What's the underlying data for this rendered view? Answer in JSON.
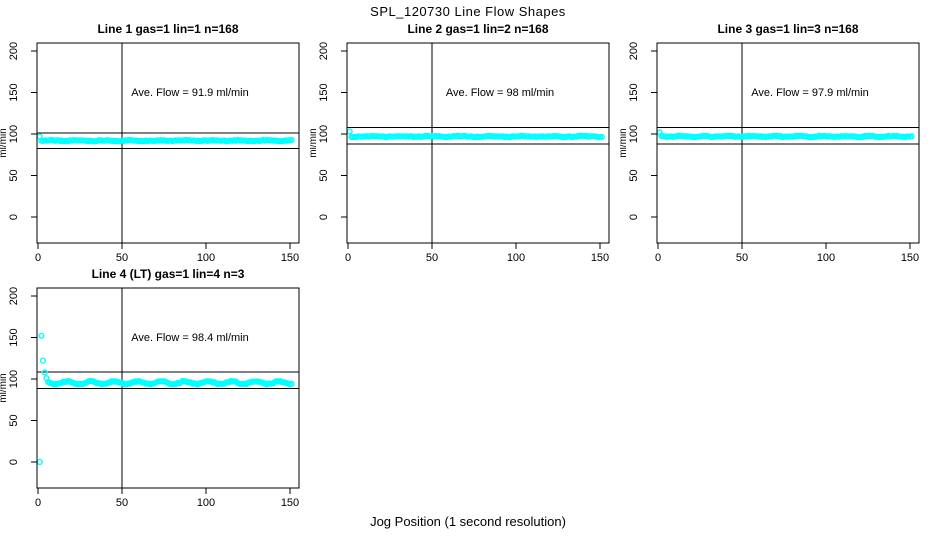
{
  "figure": {
    "title": "SPL_120730  Line Flow Shapes",
    "xlabel": "Jog Position (1 second resolution)",
    "point_color": "#00FFFF",
    "line_color": "#000000",
    "background": "#FFFFFF"
  },
  "chart_data": [
    {
      "type": "scatter",
      "title": "Line 1 gas=1 lin=1 n=168",
      "annotation": "Ave. Flow =  91.9  ml/min",
      "ave_flow_ml_min": 91.9,
      "n": 168,
      "ylabel": "ml/min",
      "xticks": [
        0,
        50,
        100,
        150
      ],
      "yticks": [
        0,
        50,
        100,
        150,
        200
      ],
      "xlim": [
        -1,
        155
      ],
      "ylim": [
        -31,
        210
      ],
      "ref_hlines": [
        101.1,
        82.7
      ],
      "ref_vline": 50,
      "grid": false,
      "series": {
        "anomaly_points": [
          [
            1,
            97
          ]
        ],
        "steady_from": 2,
        "steady_to": 151,
        "steady_value": 92,
        "noise": 0.5,
        "wiggle_amp": 0.4,
        "wiggle_period": 16,
        "seed": 11
      }
    },
    {
      "type": "scatter",
      "title": "Line 2 gas=1 lin=2 n=168",
      "annotation": "Ave. Flow =  98  ml/min",
      "ave_flow_ml_min": 98,
      "n": 168,
      "ylabel": "ml/min",
      "xticks": [
        0,
        50,
        100,
        150
      ],
      "yticks": [
        0,
        50,
        100,
        150,
        200
      ],
      "xlim": [
        -1,
        155
      ],
      "ylim": [
        -31,
        210
      ],
      "ref_hlines": [
        107.8,
        88.2
      ],
      "ref_vline": 50,
      "grid": false,
      "series": {
        "anomaly_points": [
          [
            1,
            103
          ]
        ],
        "steady_from": 2,
        "steady_to": 151,
        "steady_value": 97,
        "noise": 0.5,
        "wiggle_amp": 0.4,
        "wiggle_period": 18,
        "seed": 22
      }
    },
    {
      "type": "scatter",
      "title": "Line 3 gas=1 lin=3 n=168",
      "annotation": "Ave. Flow =  97.9  ml/min",
      "ave_flow_ml_min": 97.9,
      "n": 168,
      "ylabel": "ml/min",
      "xticks": [
        0,
        50,
        100,
        150
      ],
      "yticks": [
        0,
        50,
        100,
        150,
        200
      ],
      "xlim": [
        -1,
        155
      ],
      "ylim": [
        -31,
        210
      ],
      "ref_hlines": [
        107.7,
        88.1
      ],
      "ref_vline": 50,
      "grid": false,
      "series": {
        "anomaly_points": [
          [
            1,
            102
          ]
        ],
        "steady_from": 2,
        "steady_to": 151,
        "steady_value": 97,
        "noise": 0.5,
        "wiggle_amp": 0.4,
        "wiggle_period": 14,
        "seed": 33
      }
    },
    {
      "type": "scatter",
      "title": "Line 4 (LT) gas=1 lin=4 n=3",
      "annotation": "Ave. Flow =  98.4  ml/min",
      "ave_flow_ml_min": 98.4,
      "n": 3,
      "ylabel": "ml/min",
      "xticks": [
        0,
        50,
        100,
        150
      ],
      "yticks": [
        0,
        50,
        100,
        150,
        200
      ],
      "xlim": [
        -1,
        155
      ],
      "ylim": [
        -31,
        210
      ],
      "ref_hlines": [
        108.2,
        88.6
      ],
      "ref_vline": 50,
      "grid": false,
      "series": {
        "anomaly_points": [
          [
            1,
            0
          ],
          [
            2,
            152
          ],
          [
            3,
            122
          ],
          [
            4,
            108
          ],
          [
            5,
            101
          ]
        ],
        "steady_from": 6,
        "steady_to": 151,
        "steady_value": 95.5,
        "noise": 0.6,
        "wiggle_amp": 1.7,
        "wiggle_period": 14,
        "seed": 44
      }
    }
  ]
}
